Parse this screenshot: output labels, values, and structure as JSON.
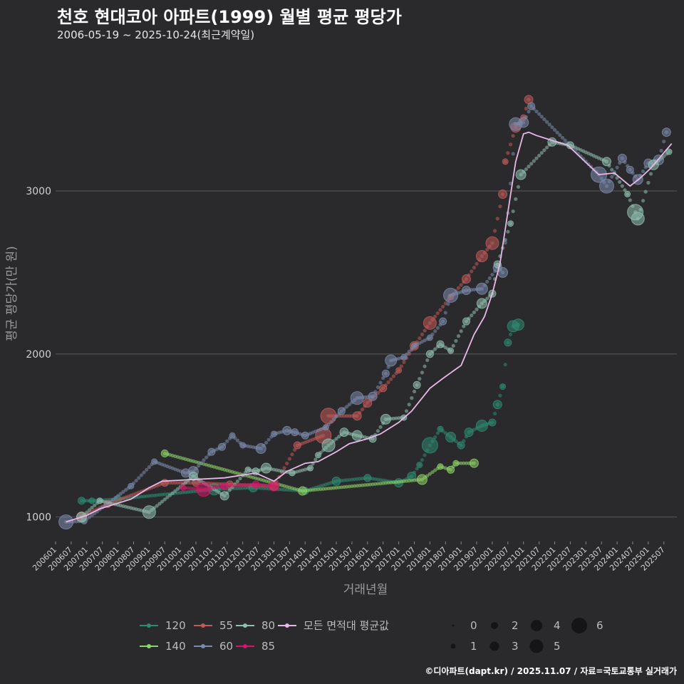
{
  "header": {
    "title": "천호 현대코아 아파트(1999) 월별 평균 평당가",
    "subtitle": "2006-05-19 ~ 2025-10-24(최근계약일)"
  },
  "footer": "©디아파트(dapt.kr) / 2025.11.07 / 자료=국토교통부 실거래가",
  "colors": {
    "background": "#2a2a2c",
    "gridline": "#5a5a5a",
    "s120": "#2e8b72",
    "s140": "#8ed26a",
    "s55": "#c25a5a",
    "s60": "#7b8aad",
    "s80": "#8fbfae",
    "s85": "#d2176a",
    "avg": "#e8b8e8"
  },
  "chart_data": {
    "type": "line",
    "title": "천호 현대코아 아파트(1999) 월별 평균 평당가",
    "xlabel": "거래년월",
    "ylabel": "평균 평당가(만 원)",
    "xlim": [
      "2006-01",
      "2025-12"
    ],
    "ylim": [
      850,
      3900
    ],
    "yticks": [
      1000,
      2000,
      3000
    ],
    "xticks": [
      "200601",
      "200607",
      "200701",
      "200707",
      "200801",
      "200807",
      "200901",
      "200907",
      "201001",
      "201007",
      "201101",
      "201107",
      "201201",
      "201207",
      "201301",
      "201307",
      "201401",
      "201407",
      "201501",
      "201507",
      "201601",
      "201607",
      "201701",
      "201707",
      "201801",
      "201807",
      "201901",
      "201907",
      "202001",
      "202007",
      "202101",
      "202107",
      "202201",
      "202207",
      "202301",
      "202307",
      "202401",
      "202407",
      "202501",
      "202507"
    ],
    "grid": true,
    "series": [
      {
        "name": "120",
        "color_key": "s120",
        "points": [
          [
            "2006-11",
            1100
          ],
          [
            "2007-03",
            1100
          ],
          [
            "2008-01",
            1110
          ],
          [
            "2011-02",
            1170
          ],
          [
            "2012-05",
            1180
          ],
          [
            "2014-01",
            1160
          ],
          [
            "2015-01",
            1220
          ],
          [
            "2016-01",
            1240
          ],
          [
            "2017-01",
            1210
          ],
          [
            "2017-06",
            1250
          ],
          [
            "2017-09",
            1320
          ],
          [
            "2018-01",
            1440
          ],
          [
            "2018-05",
            1540
          ],
          [
            "2018-09",
            1490
          ],
          [
            "2019-01",
            1440
          ],
          [
            "2019-04",
            1520
          ],
          [
            "2019-09",
            1560
          ],
          [
            "2020-01",
            1580
          ],
          [
            "2020-03",
            1690
          ],
          [
            "2020-05",
            1800
          ],
          [
            "2020-07",
            2070
          ],
          [
            "2020-09",
            2170
          ],
          [
            "2020-11",
            2180
          ]
        ]
      },
      {
        "name": "140",
        "color_key": "s140",
        "points": [
          [
            "2009-07",
            1390
          ],
          [
            "2013-12",
            1160
          ],
          [
            "2017-10",
            1230
          ],
          [
            "2018-05",
            1310
          ],
          [
            "2018-09",
            1290
          ],
          [
            "2018-11",
            1330
          ],
          [
            "2019-06",
            1330
          ]
        ]
      },
      {
        "name": "55",
        "color_key": "s55",
        "points": [
          [
            "2006-11",
            1000
          ],
          [
            "2007-09",
            1080
          ],
          [
            "2009-07",
            1210
          ],
          [
            "2010-07",
            1210
          ],
          [
            "2011-08",
            1200
          ],
          [
            "2013-01",
            1190
          ],
          [
            "2013-10",
            1440
          ],
          [
            "2014-08",
            1500
          ],
          [
            "2014-10",
            1620
          ],
          [
            "2015-09",
            1620
          ],
          [
            "2016-01",
            1700
          ],
          [
            "2016-07",
            1790
          ],
          [
            "2017-01",
            1900
          ],
          [
            "2017-07",
            2050
          ],
          [
            "2018-01",
            2190
          ],
          [
            "2018-09",
            2350
          ],
          [
            "2019-03",
            2460
          ],
          [
            "2019-09",
            2600
          ],
          [
            "2020-01",
            2680
          ],
          [
            "2020-05",
            2980
          ],
          [
            "2020-06",
            3180
          ],
          [
            "2020-10",
            3390
          ],
          [
            "2021-01",
            3450
          ],
          [
            "2021-03",
            3560
          ]
        ]
      },
      {
        "name": "60",
        "color_key": "s60",
        "points": [
          [
            "2006-05",
            970
          ],
          [
            "2006-12",
            975
          ],
          [
            "2008-06",
            1190
          ],
          [
            "2009-03",
            1340
          ],
          [
            "2010-03",
            1270
          ],
          [
            "2010-06",
            1280
          ],
          [
            "2011-01",
            1400
          ],
          [
            "2011-05",
            1430
          ],
          [
            "2011-09",
            1500
          ],
          [
            "2012-01",
            1440
          ],
          [
            "2012-08",
            1420
          ],
          [
            "2013-01",
            1510
          ],
          [
            "2013-06",
            1530
          ],
          [
            "2013-09",
            1520
          ],
          [
            "2014-01",
            1500
          ],
          [
            "2014-09",
            1550
          ],
          [
            "2015-03",
            1650
          ],
          [
            "2015-09",
            1730
          ],
          [
            "2016-03",
            1740
          ],
          [
            "2016-08",
            1880
          ],
          [
            "2016-10",
            1960
          ],
          [
            "2017-03",
            1980
          ],
          [
            "2017-07",
            2050
          ],
          [
            "2018-01",
            2100
          ],
          [
            "2018-06",
            2200
          ],
          [
            "2018-09",
            2360
          ],
          [
            "2019-03",
            2390
          ],
          [
            "2019-09",
            2400
          ],
          [
            "2020-03",
            2530
          ],
          [
            "2020-05",
            2500
          ],
          [
            "2020-10",
            3410
          ],
          [
            "2021-01",
            3420
          ],
          [
            "2021-04",
            3520
          ],
          [
            "2023-06",
            3100
          ],
          [
            "2023-09",
            3030
          ],
          [
            "2024-03",
            3200
          ],
          [
            "2024-06",
            3130
          ],
          [
            "2024-09",
            3070
          ],
          [
            "2025-01",
            3170
          ],
          [
            "2025-05",
            3190
          ],
          [
            "2025-08",
            3360
          ]
        ]
      },
      {
        "name": "80",
        "color_key": "s80",
        "points": [
          [
            "2006-11",
            1000
          ],
          [
            "2007-06",
            1100
          ],
          [
            "2009-01",
            1030
          ],
          [
            "2010-06",
            1250
          ],
          [
            "2011-06",
            1130
          ],
          [
            "2012-03",
            1290
          ],
          [
            "2012-06",
            1280
          ],
          [
            "2012-10",
            1300
          ],
          [
            "2013-08",
            1270
          ],
          [
            "2014-03",
            1300
          ],
          [
            "2014-06",
            1380
          ],
          [
            "2014-10",
            1440
          ],
          [
            "2015-04",
            1520
          ],
          [
            "2015-09",
            1500
          ],
          [
            "2016-03",
            1480
          ],
          [
            "2016-08",
            1600
          ],
          [
            "2017-03",
            1610
          ],
          [
            "2017-08",
            1810
          ],
          [
            "2018-01",
            2000
          ],
          [
            "2018-05",
            2060
          ],
          [
            "2018-09",
            2020
          ],
          [
            "2019-03",
            2200
          ],
          [
            "2019-09",
            2310
          ],
          [
            "2020-01",
            2370
          ],
          [
            "2020-03",
            2550
          ],
          [
            "2020-08",
            2800
          ],
          [
            "2020-12",
            3100
          ],
          [
            "2021-12",
            3300
          ],
          [
            "2022-07",
            3280
          ],
          [
            "2023-09",
            3180
          ],
          [
            "2024-05",
            2980
          ],
          [
            "2024-08",
            2870
          ],
          [
            "2024-09",
            2830
          ],
          [
            "2025-03",
            3160
          ],
          [
            "2025-09",
            3240
          ]
        ]
      },
      {
        "name": "85",
        "color_key": "s85",
        "points": [
          [
            "2010-02",
            1180
          ],
          [
            "2010-10",
            1170
          ],
          [
            "2011-06",
            1190
          ],
          [
            "2012-06",
            1200
          ],
          [
            "2013-01",
            1190
          ]
        ]
      },
      {
        "name": "모든 면적대 평균값",
        "color_key": "avg",
        "is_average": true,
        "points": [
          [
            "2006-05",
            970
          ],
          [
            "2007-01",
            1010
          ],
          [
            "2007-06",
            1050
          ],
          [
            "2008-06",
            1110
          ],
          [
            "2009-01",
            1180
          ],
          [
            "2009-06",
            1220
          ],
          [
            "2010-06",
            1230
          ],
          [
            "2011-06",
            1240
          ],
          [
            "2012-06",
            1270
          ],
          [
            "2013-01",
            1220
          ],
          [
            "2013-06",
            1280
          ],
          [
            "2014-01",
            1330
          ],
          [
            "2014-06",
            1340
          ],
          [
            "2015-01",
            1400
          ],
          [
            "2015-06",
            1450
          ],
          [
            "2016-01",
            1480
          ],
          [
            "2016-06",
            1510
          ],
          [
            "2017-01",
            1580
          ],
          [
            "2017-06",
            1650
          ],
          [
            "2018-01",
            1790
          ],
          [
            "2018-06",
            1850
          ],
          [
            "2019-01",
            1930
          ],
          [
            "2019-06",
            2120
          ],
          [
            "2019-10",
            2230
          ],
          [
            "2020-01",
            2370
          ],
          [
            "2020-04",
            2560
          ],
          [
            "2020-07",
            2870
          ],
          [
            "2020-10",
            3180
          ],
          [
            "2021-01",
            3350
          ],
          [
            "2021-03",
            3360
          ],
          [
            "2021-06",
            3340
          ],
          [
            "2022-06",
            3280
          ],
          [
            "2023-06",
            3100
          ],
          [
            "2023-12",
            3110
          ],
          [
            "2024-06",
            3030
          ],
          [
            "2024-10",
            3080
          ],
          [
            "2025-02",
            3140
          ],
          [
            "2025-10",
            3290
          ]
        ]
      }
    ],
    "legend": {
      "series_labels": [
        "120",
        "140",
        "55",
        "60",
        "80",
        "85",
        "모든 면적대 평균값"
      ],
      "size_labels": [
        "0",
        "1",
        "2",
        "3",
        "4",
        "5",
        "6"
      ]
    }
  }
}
